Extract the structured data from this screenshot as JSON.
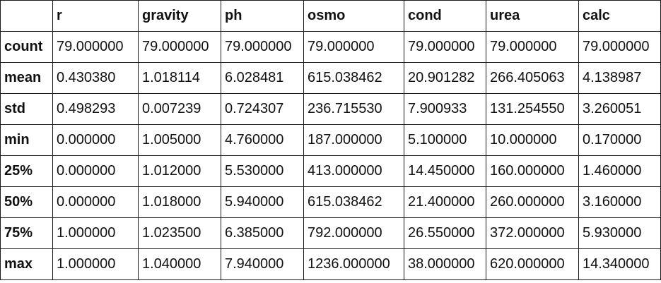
{
  "table": {
    "columns": [
      "",
      "r",
      "gravity",
      "ph",
      "osmo",
      "cond",
      "urea",
      "calc"
    ],
    "rows": [
      {
        "label": "count",
        "values": [
          "79.000000",
          "79.000000",
          "79.000000",
          "79.000000",
          "79.000000",
          "79.000000",
          "79.000000"
        ]
      },
      {
        "label": "mean",
        "values": [
          "0.430380",
          "1.018114",
          "6.028481",
          "615.038462",
          "20.901282",
          "266.405063",
          "4.138987"
        ]
      },
      {
        "label": "std",
        "values": [
          "0.498293",
          "0.007239",
          "0.724307",
          "236.715530",
          "7.900933",
          "131.254550",
          "3.260051"
        ]
      },
      {
        "label": "min",
        "values": [
          "0.000000",
          "1.005000",
          "4.760000",
          "187.000000",
          "5.100000",
          "10.000000",
          "0.170000"
        ]
      },
      {
        "label": "25%",
        "values": [
          "0.000000",
          "1.012000",
          "5.530000",
          "413.000000",
          "14.450000",
          "160.000000",
          "1.460000"
        ]
      },
      {
        "label": "50%",
        "values": [
          "0.000000",
          "1.018000",
          "5.940000",
          "615.038462",
          "21.400000",
          "260.000000",
          "3.160000"
        ]
      },
      {
        "label": "75%",
        "values": [
          "1.000000",
          "1.023500",
          "6.385000",
          "792.000000",
          "26.550000",
          "372.000000",
          "5.930000"
        ]
      },
      {
        "label": "max",
        "values": [
          "1.000000",
          "1.040000",
          "7.940000",
          "1236.000000",
          "38.000000",
          "620.000000",
          "14.340000"
        ]
      }
    ]
  }
}
